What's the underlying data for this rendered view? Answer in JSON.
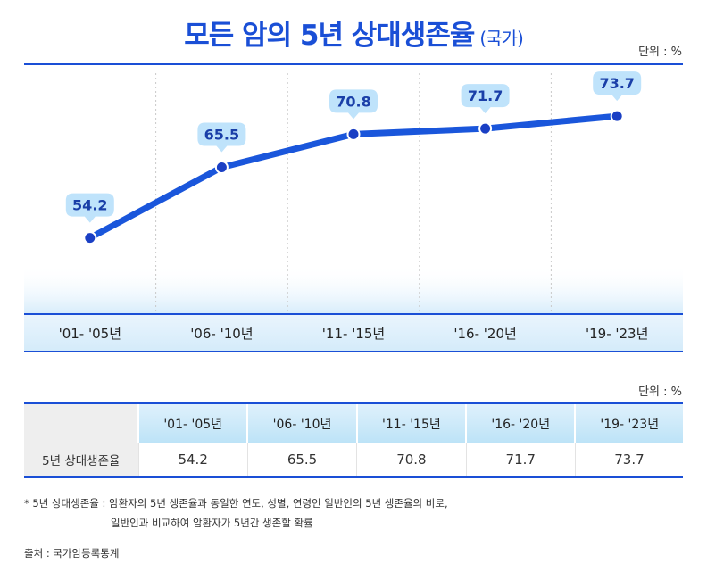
{
  "header": {
    "title": "모든 암의 5년 상대생존율",
    "title_sub": "(국가)",
    "unit_label": "단위 : %"
  },
  "chart_data": {
    "type": "line",
    "categories": [
      "'01- '05년",
      "'06- '10년",
      "'11- '15년",
      "'16- '20년",
      "'19- '23년"
    ],
    "values": [
      54.2,
      65.5,
      70.8,
      71.7,
      73.7
    ],
    "value_labels": [
      "54.2",
      "65.5",
      "70.8",
      "71.7",
      "73.7"
    ],
    "ylim": [
      42,
      82
    ],
    "grid": "vertical-dotted",
    "line_color": "#1a56db",
    "label_bubble_color": "#bfe3fb"
  },
  "table": {
    "unit_label": "단위 : %",
    "headers": [
      "'01- '05년",
      "'06- '10년",
      "'11- '15년",
      "'16- '20년",
      "'19- '23년"
    ],
    "row_label": "5년 상대생존율",
    "values": [
      "54.2",
      "65.5",
      "70.8",
      "71.7",
      "73.7"
    ]
  },
  "footnote": {
    "line1": "* 5년 상대생존율 : 암환자의 5년 생존율과 동일한 연도, 성별, 연령인 일반인의  5년 생존율의 비로,",
    "line2": "일반인과 비교하여 암환자가 5년간 생존할 확률"
  },
  "source": "출처 : 국가암등록통계"
}
